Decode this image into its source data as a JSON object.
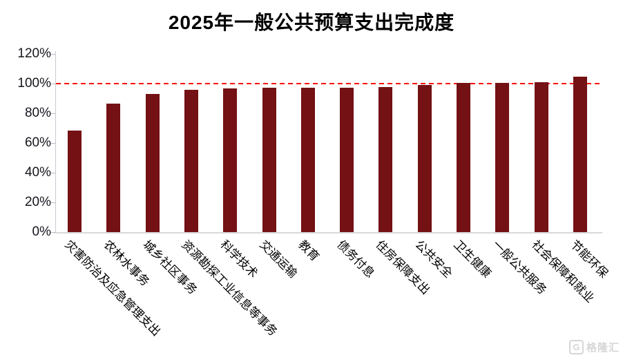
{
  "title": "2025年一般公共预算支出完成度",
  "watermark": {
    "logo_letter": "G",
    "text": "格隆汇"
  },
  "colors": {
    "bar": "#741114",
    "reference_line": "#ff0000",
    "axis": "#c9c9d4",
    "title_text": "#000000"
  },
  "chart_data": {
    "type": "bar",
    "title": "2025年一般公共预算支出完成度",
    "categories": [
      "灾害防治及应急管理支出",
      "农林水事务",
      "城乡社区事务",
      "资源勘探工业信息等事务",
      "科学技术",
      "交通运输",
      "教育",
      "债务付息",
      "住房保障支出",
      "公共安全",
      "卫生健康",
      "一般公共服务",
      "社会保障和就业",
      "节能环保"
    ],
    "values": [
      68.6,
      86.5,
      93.0,
      96.0,
      96.9,
      97.0,
      97.2,
      97.4,
      97.5,
      99.0,
      100.4,
      100.4,
      100.9,
      104.5
    ],
    "unit": "%",
    "xlabel": "",
    "ylabel": "",
    "ylim": [
      0,
      120
    ],
    "ytick_step": 20,
    "yticks": [
      "0%",
      "20%",
      "40%",
      "60%",
      "80%",
      "100%",
      "120%"
    ],
    "reference_line": {
      "value": 100,
      "style": "dashed",
      "color": "#ff0000"
    },
    "grid": false,
    "legend": null,
    "bar_color": "#741114"
  }
}
